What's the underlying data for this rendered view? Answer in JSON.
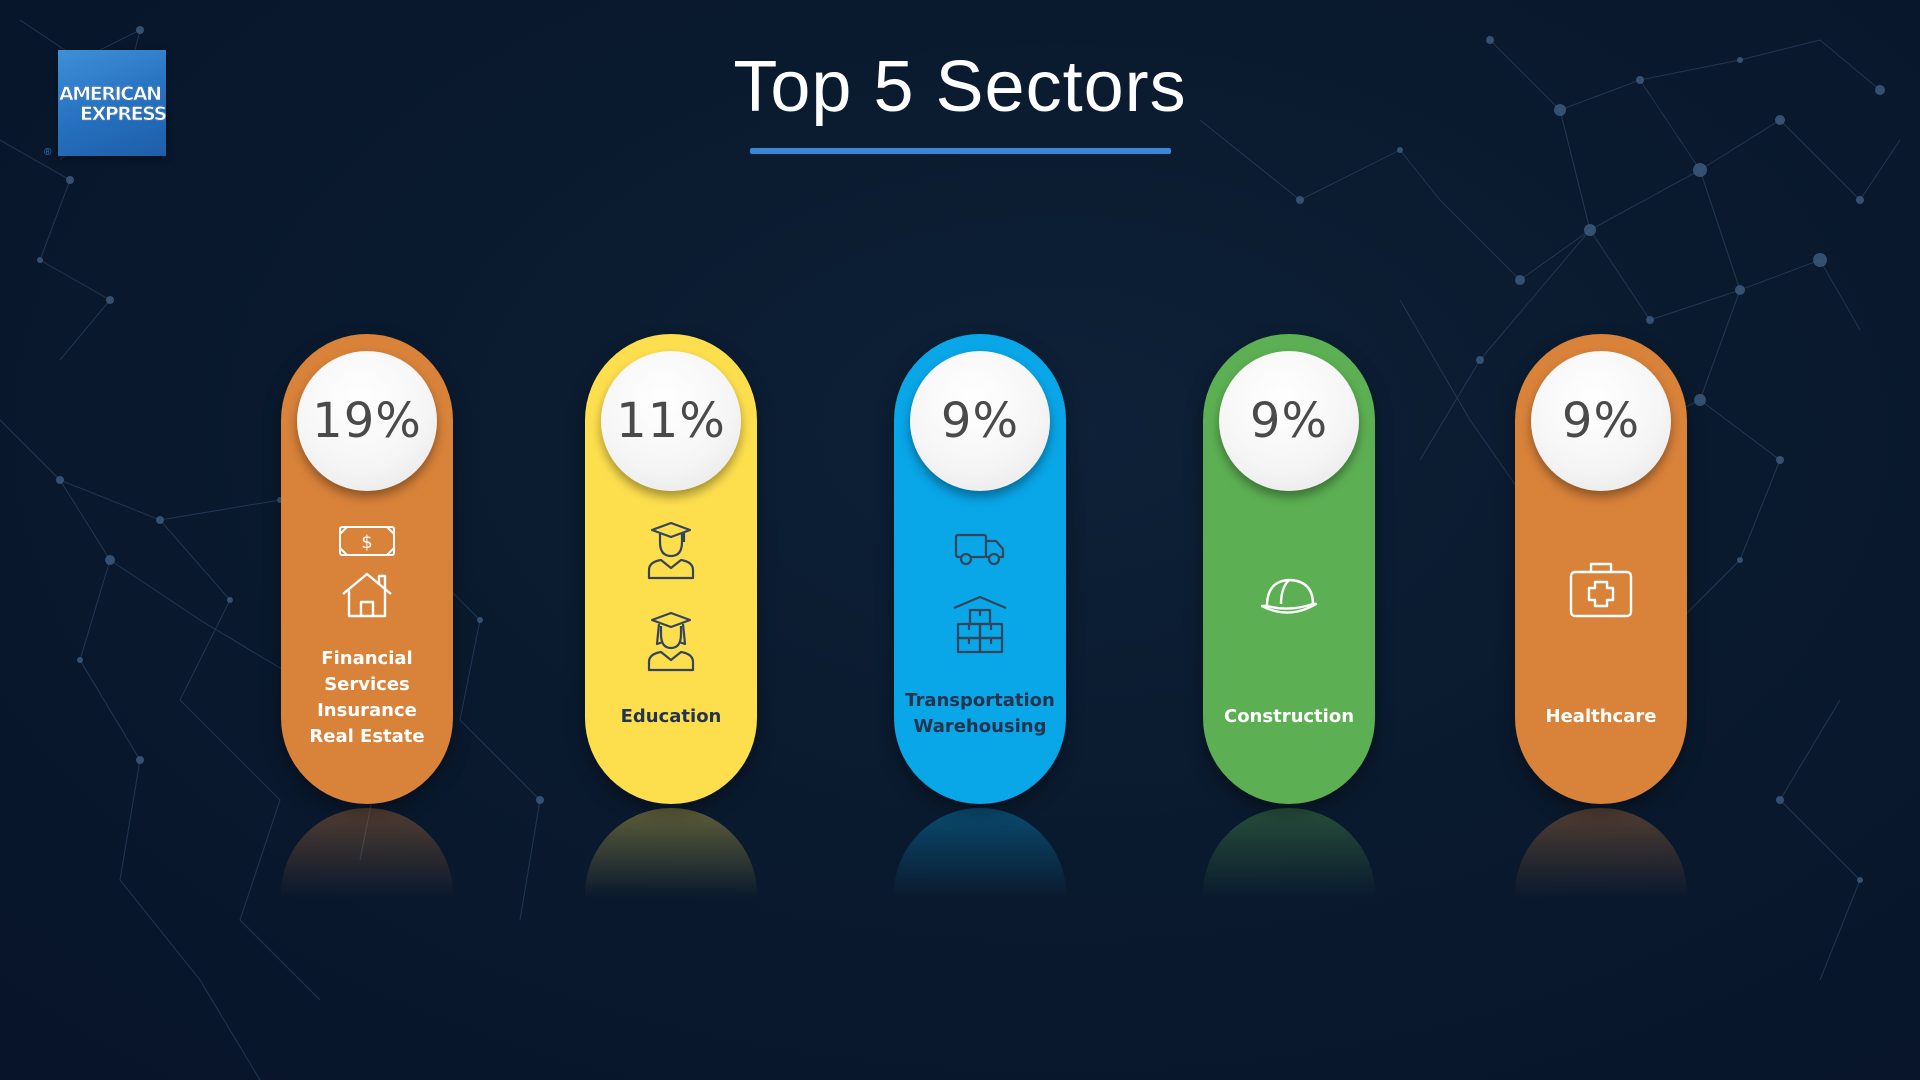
{
  "logo": {
    "line1": "AMERICAN",
    "line2": "EXPRESS",
    "registered": "®"
  },
  "title": "Top 5 Sectors",
  "colors": {
    "accent_underline": "#3a86d8",
    "orange": "#d9823a",
    "yellow": "#fddf4e",
    "blue": "#09a6e8",
    "green": "#5cb053"
  },
  "sectors": [
    {
      "percent": "19%",
      "label_lines": [
        "Financial",
        "Services",
        "Insurance",
        "Real Estate"
      ],
      "color": "orange",
      "icons": [
        "money-icon",
        "house-icon"
      ]
    },
    {
      "percent": "11%",
      "label_lines": [
        "Education"
      ],
      "color": "yellow",
      "icons": [
        "male-graduate-icon",
        "female-graduate-icon"
      ]
    },
    {
      "percent": "9%",
      "label_lines": [
        "Transportation",
        "Warehousing"
      ],
      "color": "blue",
      "icons": [
        "truck-icon",
        "warehouse-icon"
      ]
    },
    {
      "percent": "9%",
      "label_lines": [
        "Construction"
      ],
      "color": "green",
      "icons": [
        "hard-hat-icon"
      ]
    },
    {
      "percent": "9%",
      "label_lines": [
        "Healthcare"
      ],
      "color": "orange",
      "icons": [
        "first-aid-kit-icon"
      ]
    }
  ]
}
